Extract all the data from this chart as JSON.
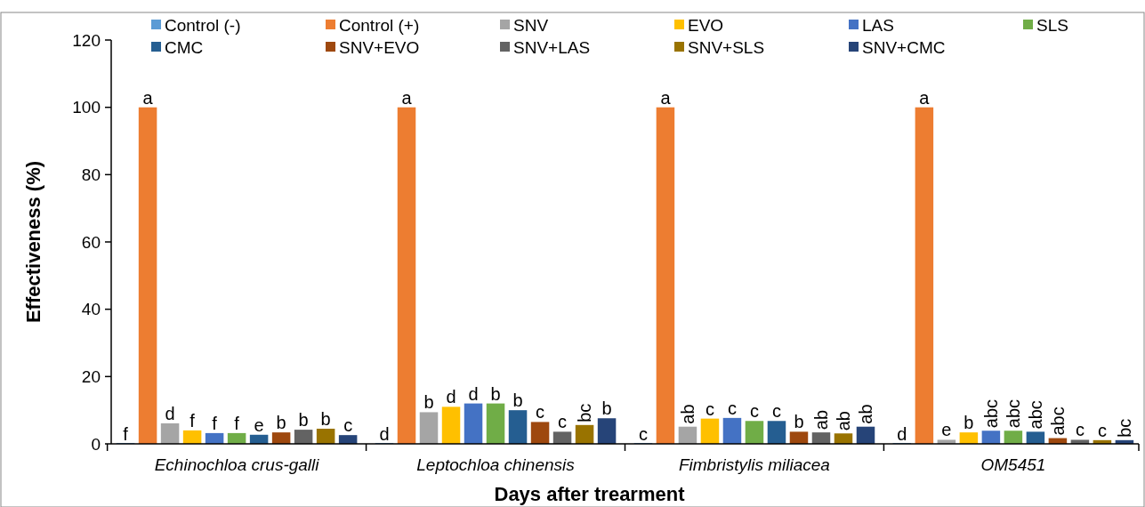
{
  "chart_data": {
    "type": "bar",
    "xlabel": "Days after trearment",
    "ylabel": "Effectiveness (%)",
    "categories": [
      "Echinochloa crus-galli",
      "Leptochloa chinensis",
      "Fimbristylis miliacea",
      "OM5451"
    ],
    "ylim": [
      0,
      120
    ],
    "yticks": [
      0,
      20,
      40,
      60,
      80,
      100,
      120
    ],
    "grid": false,
    "legend": "top",
    "series": [
      {
        "name": "Control (-)",
        "color": "#5b9bd5",
        "values": [
          0,
          0,
          0,
          0
        ],
        "value_labels": [
          "f",
          "d",
          "c",
          "d"
        ]
      },
      {
        "name": "Control (+)",
        "color": "#ed7d31",
        "values": [
          100,
          100,
          100,
          100
        ],
        "value_labels": [
          "a",
          "a",
          "a",
          "a"
        ]
      },
      {
        "name": "SNV",
        "color": "#a5a5a5",
        "values": [
          6.1,
          9.4,
          5.1,
          1.2
        ],
        "value_labels": [
          "d",
          "b",
          "ab",
          "e"
        ]
      },
      {
        "name": "EVO",
        "color": "#ffc000",
        "values": [
          4.0,
          11.0,
          7.5,
          3.4
        ],
        "value_labels": [
          "f",
          "d",
          "c",
          "b"
        ]
      },
      {
        "name": "LAS",
        "color": "#4472c4",
        "values": [
          3.2,
          12.0,
          7.7,
          3.9
        ],
        "value_labels": [
          "f",
          "d",
          "c",
          "abc"
        ]
      },
      {
        "name": "SLS",
        "color": "#70ad47",
        "values": [
          3.2,
          12.0,
          6.8,
          3.9
        ],
        "value_labels": [
          "f",
          "b",
          "c",
          "abc"
        ]
      },
      {
        "name": "CMC",
        "color": "#255e91",
        "values": [
          2.7,
          10.0,
          6.8,
          3.6
        ],
        "value_labels": [
          "e",
          "b",
          "c",
          "abc"
        ]
      },
      {
        "name": "SNV+EVO",
        "color": "#9e480e",
        "values": [
          3.4,
          6.5,
          3.6,
          1.7
        ],
        "value_labels": [
          "b",
          "c",
          "b",
          "abc"
        ]
      },
      {
        "name": "SNV+LAS",
        "color": "#636363",
        "values": [
          4.2,
          3.6,
          3.4,
          1.2
        ],
        "value_labels": [
          "b",
          "c",
          "ab",
          "c"
        ]
      },
      {
        "name": "SNV+SLS",
        "color": "#997300",
        "values": [
          4.5,
          5.6,
          3.1,
          1.1
        ],
        "value_labels": [
          "b",
          "bc",
          "ab",
          "c"
        ]
      },
      {
        "name": "SNV+CMC",
        "color": "#264478",
        "values": [
          2.6,
          7.6,
          5.1,
          1.1
        ],
        "value_labels": [
          "c",
          "b",
          "ab",
          "bc"
        ]
      }
    ]
  }
}
